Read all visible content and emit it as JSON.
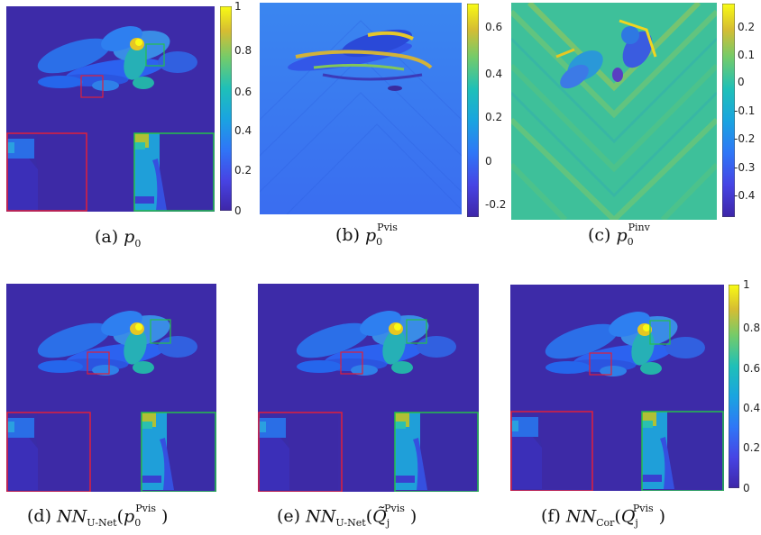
{
  "colors": {
    "background": "#3d2ba8",
    "parula_low": "#3e26a8",
    "parula_mid": "#20b0c8",
    "parula_high": "#f9fb14",
    "inset_red": "#e0203a",
    "inset_green": "#25c04a"
  },
  "panels": [
    {
      "id": "a",
      "tag": "(a)",
      "caption_math": "p",
      "caption_sub": "0",
      "caption_sup": "",
      "colorbar_ticks": [
        "1",
        "0.8",
        "0.6",
        "0.4",
        "0.2",
        "0"
      ]
    },
    {
      "id": "b",
      "tag": "(b)",
      "caption_math": "p",
      "caption_sub": "0",
      "caption_sup": "Pvis",
      "colorbar_ticks": [
        "0.6",
        "0.4",
        "0.2",
        "0",
        "-0.2"
      ]
    },
    {
      "id": "c",
      "tag": "(c)",
      "caption_math": "p",
      "caption_sub": "0",
      "caption_sup": "Pinv",
      "colorbar_ticks": [
        "0.2",
        "0.1",
        "0",
        "-0.1",
        "-0.2",
        "-0.3",
        "-0.4"
      ]
    },
    {
      "id": "d",
      "tag": "(d)",
      "caption_prefix": "NN",
      "caption_prefix_sub": "U-Net",
      "caption_arg": "p",
      "caption_arg_sub": "0",
      "caption_arg_sup": "Pvis"
    },
    {
      "id": "e",
      "tag": "(e)",
      "caption_prefix": "NN",
      "caption_prefix_sub": "U-Net",
      "caption_arg": "Q̃",
      "caption_arg_sub": "j",
      "caption_arg_sup": "Pvis"
    },
    {
      "id": "f",
      "tag": "(f)",
      "caption_prefix": "NN",
      "caption_prefix_sub": "Cor",
      "caption_arg": "Q",
      "caption_arg_sub": "j",
      "caption_arg_sup": "Pvis",
      "colorbar_ticks": [
        "1",
        "0.8",
        "0.6",
        "0.4",
        "0.2",
        "0"
      ]
    }
  ]
}
